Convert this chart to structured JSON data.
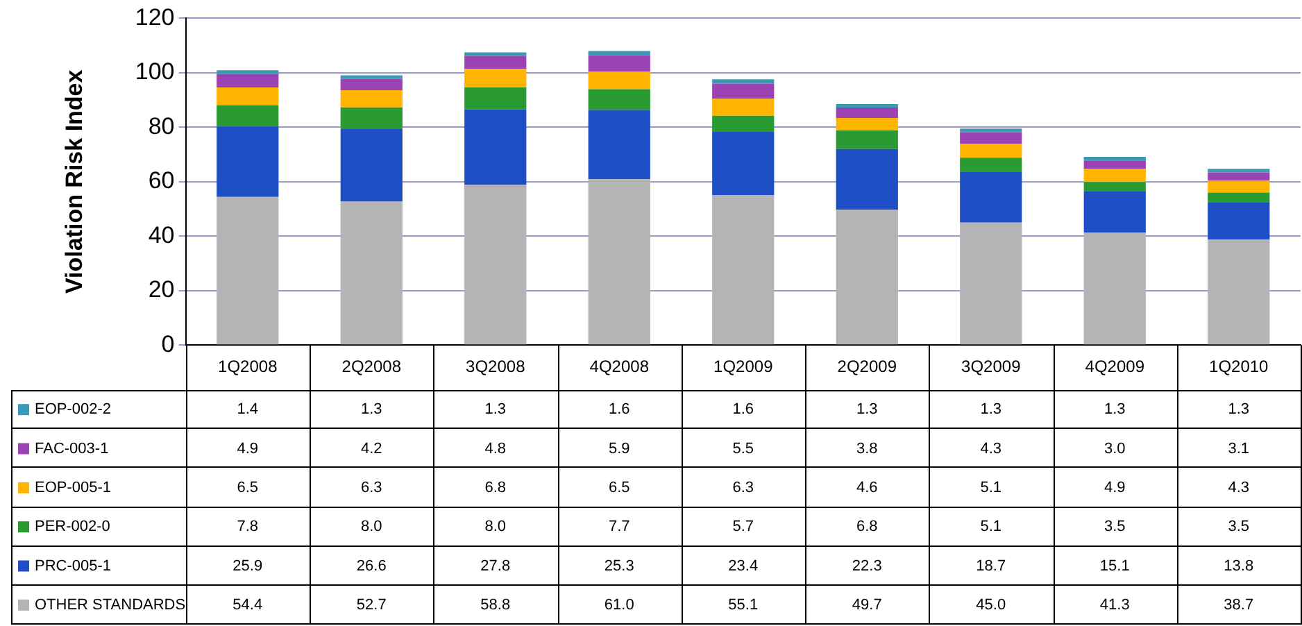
{
  "chart_data": {
    "type": "bar",
    "stacked": true,
    "ylabel": "Violation Risk Index",
    "categories": [
      "1Q2008",
      "2Q2008",
      "3Q2008",
      "4Q2008",
      "1Q2009",
      "2Q2009",
      "3Q2009",
      "4Q2009",
      "1Q2010"
    ],
    "ylim": [
      0,
      120
    ],
    "yticks": [
      0,
      20,
      40,
      60,
      80,
      100,
      120
    ],
    "grid": "y",
    "legend": "bottom left",
    "series": [
      {
        "name": "OTHER STANDARDS",
        "color": "#b4b4b4",
        "values": [
          54.4,
          52.7,
          58.8,
          61.0,
          55.1,
          49.7,
          45.0,
          41.3,
          38.7
        ],
        "value_labels": [
          "54.4",
          "52.7",
          "58.8",
          "61.0",
          "55.1",
          "49.7",
          "45.0",
          "41.3",
          "38.7"
        ]
      },
      {
        "name": "PRC-005-1",
        "color": "#1f4fc4",
        "values": [
          25.9,
          26.6,
          27.8,
          25.3,
          23.4,
          22.3,
          18.7,
          15.1,
          13.8
        ],
        "value_labels": [
          "25.9",
          "26.6",
          "27.8",
          "25.3",
          "23.4",
          "22.3",
          "18.7",
          "15.1",
          "13.8"
        ]
      },
      {
        "name": "PER-002-0",
        "color": "#2a9a32",
        "values": [
          7.8,
          8.0,
          8.0,
          7.7,
          5.7,
          6.8,
          5.1,
          3.5,
          3.5
        ],
        "value_labels": [
          "7.8",
          "8.0",
          "8.0",
          "7.7",
          "5.7",
          "6.8",
          "5.1",
          "3.5",
          "3.5"
        ]
      },
      {
        "name": "EOP-005-1",
        "color": "#ffb400",
        "values": [
          6.5,
          6.3,
          6.8,
          6.5,
          6.3,
          4.6,
          5.1,
          4.9,
          4.3
        ],
        "value_labels": [
          "6.5",
          "6.3",
          "6.8",
          "6.5",
          "6.3",
          "4.6",
          "5.1",
          "4.9",
          "4.3"
        ]
      },
      {
        "name": "FAC-003-1",
        "color": "#9b42b4",
        "values": [
          4.9,
          4.2,
          4.8,
          5.9,
          5.5,
          3.8,
          4.3,
          3.0,
          3.1
        ],
        "value_labels": [
          "4.9",
          "4.2",
          "4.8",
          "5.9",
          "5.5",
          "3.8",
          "4.3",
          "3.0",
          "3.1"
        ]
      },
      {
        "name": "EOP-002-2",
        "color": "#3a9ab4",
        "values": [
          1.4,
          1.3,
          1.3,
          1.6,
          1.6,
          1.3,
          1.3,
          1.3,
          1.3
        ],
        "value_labels": [
          "1.4",
          "1.3",
          "1.3",
          "1.6",
          "1.6",
          "1.3",
          "1.3",
          "1.3",
          "1.3"
        ]
      }
    ]
  }
}
